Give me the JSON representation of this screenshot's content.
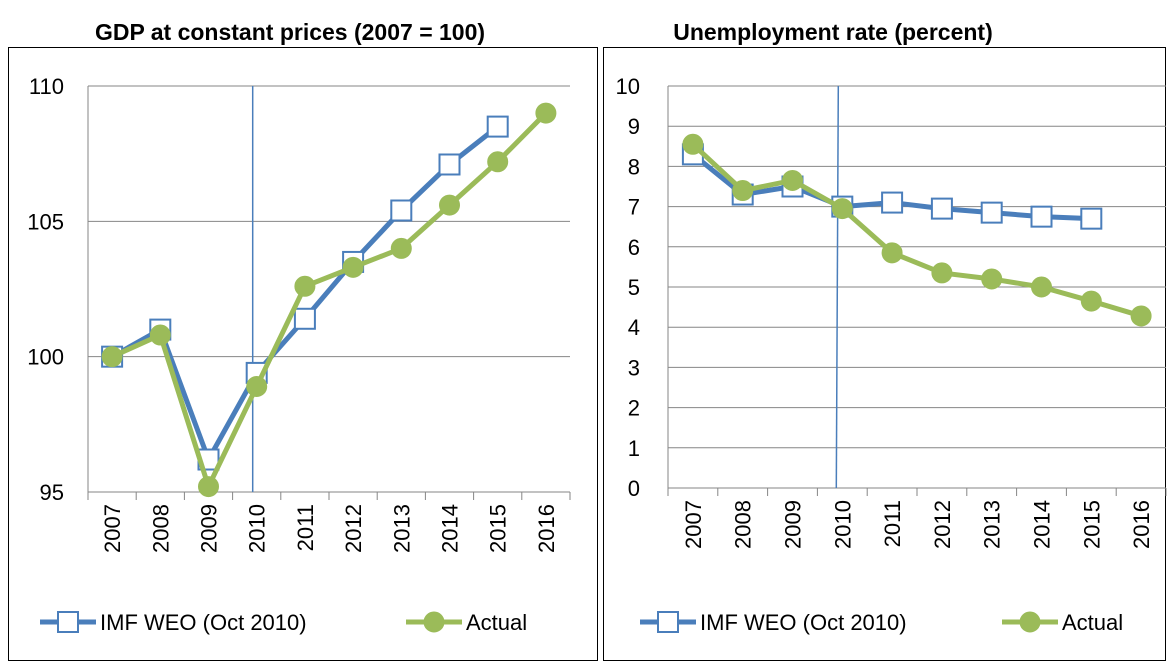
{
  "chart_data": [
    {
      "type": "line",
      "title": "GDP at constant prices (2007 = 100)",
      "categories": [
        "2007",
        "2008",
        "2009",
        "2010",
        "2011",
        "2012",
        "2013",
        "2014",
        "2015",
        "2016"
      ],
      "series": [
        {
          "name": "IMF WEO (Oct 2010)",
          "color": "#4a7ebb",
          "marker": "square",
          "values": [
            100,
            101.0,
            96.2,
            99.4,
            101.4,
            103.5,
            105.4,
            107.1,
            108.5,
            null
          ]
        },
        {
          "name": "Actual",
          "color": "#9bbb59",
          "marker": "circle",
          "values": [
            100,
            100.8,
            95.2,
            98.9,
            102.6,
            103.3,
            104.0,
            105.6,
            107.2,
            109.0
          ]
        }
      ],
      "ylim": [
        95,
        110
      ],
      "yticks": [
        95,
        100,
        105,
        110
      ],
      "grid": true,
      "legend": "bottom"
    },
    {
      "type": "line",
      "title": "Unemployment rate (percent)",
      "categories": [
        "2007",
        "2008",
        "2009",
        "2010",
        "2011",
        "2012",
        "2013",
        "2014",
        "2015",
        "2016"
      ],
      "series": [
        {
          "name": "IMF WEO (Oct 2010)",
          "color": "#4a7ebb",
          "marker": "square",
          "values": [
            8.3,
            7.3,
            7.5,
            7.0,
            7.1,
            6.95,
            6.85,
            6.75,
            6.7,
            null
          ]
        },
        {
          "name": "Actual",
          "color": "#9bbb59",
          "marker": "circle",
          "values": [
            8.55,
            7.4,
            7.65,
            6.95,
            5.85,
            5.35,
            5.2,
            5.0,
            4.65,
            4.28
          ]
        }
      ],
      "ylim": [
        0,
        10
      ],
      "yticks": [
        0,
        1,
        2,
        3,
        4,
        5,
        6,
        7,
        8,
        9,
        10
      ],
      "grid": true,
      "legend": "bottom"
    }
  ]
}
